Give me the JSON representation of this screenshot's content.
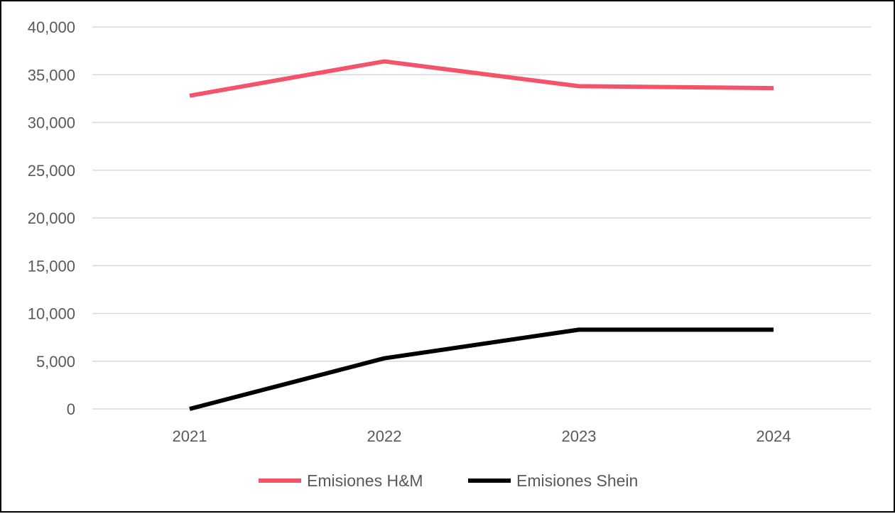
{
  "chart_data": {
    "type": "line",
    "title": "",
    "xlabel": "",
    "ylabel": "",
    "categories": [
      "2021",
      "2022",
      "2023",
      "2024"
    ],
    "ylim": [
      0,
      40000
    ],
    "yticks": [
      0,
      5000,
      10000,
      15000,
      20000,
      25000,
      30000,
      35000,
      40000
    ],
    "ytick_labels": [
      "0",
      "5,000",
      "10,000",
      "15,000",
      "20,000",
      "25,000",
      "30,000",
      "35,000",
      "40,000"
    ],
    "grid": true,
    "legend_position": "bottom",
    "series": [
      {
        "name": "Emisiones H&M",
        "color": "#f4546a",
        "values": [
          32800,
          36400,
          33800,
          33600
        ]
      },
      {
        "name": "Emisiones Shein",
        "color": "#000000",
        "values": [
          0,
          5300,
          8300,
          8300
        ]
      }
    ]
  }
}
